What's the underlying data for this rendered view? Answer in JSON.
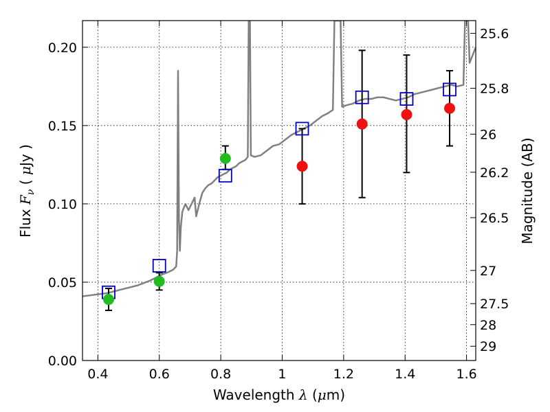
{
  "chart_data": {
    "type": "scatter",
    "xlabel": "Wavelength  λ (μm)",
    "ylabel": "Flux  F_ν ( μJy )",
    "ylabel_right": "Magnitude (AB)",
    "xlim": [
      0.35,
      1.63
    ],
    "ylim": [
      0.0,
      0.217
    ],
    "x_ticks": [
      0.4,
      0.6,
      0.8,
      1.0,
      1.2,
      1.4,
      1.6
    ],
    "x_tick_labels": [
      "0.4",
      "0.6",
      "0.8",
      "1",
      "1.2",
      "1.4",
      "1.6"
    ],
    "y_ticks": [
      0.0,
      0.05,
      0.1,
      0.15,
      0.2
    ],
    "y_tick_labels": [
      "0.00",
      "0.05",
      "0.10",
      "0.15",
      "0.20"
    ],
    "right_ticks": [
      {
        "label": "25.6",
        "flux": 0.2089
      },
      {
        "label": "25.8",
        "flux": 0.1738
      },
      {
        "label": "26",
        "flux": 0.1445
      },
      {
        "label": "26.2",
        "flux": 0.1202
      },
      {
        "label": "26.5",
        "flux": 0.0912
      },
      {
        "label": "27",
        "flux": 0.0575
      },
      {
        "label": "27.5",
        "flux": 0.0363
      },
      {
        "label": "28",
        "flux": 0.0229
      },
      {
        "label": "29",
        "flux": 0.0091
      }
    ],
    "grid": true,
    "colors": {
      "model": "#808080",
      "blue_squares": "#0000bb",
      "green_points": "#22bb22",
      "red_points": "#ee1111",
      "error_bars": "#000000"
    },
    "series": [
      {
        "kind": "model-spectrum",
        "points": [
          [
            0.35,
            0.041
          ],
          [
            0.37,
            0.0415
          ],
          [
            0.39,
            0.042
          ],
          [
            0.41,
            0.0425
          ],
          [
            0.43,
            0.043
          ],
          [
            0.45,
            0.044
          ],
          [
            0.47,
            0.045
          ],
          [
            0.49,
            0.046
          ],
          [
            0.51,
            0.047
          ],
          [
            0.53,
            0.048
          ],
          [
            0.55,
            0.0495
          ],
          [
            0.57,
            0.051
          ],
          [
            0.59,
            0.053
          ],
          [
            0.61,
            0.055
          ],
          [
            0.63,
            0.0565
          ],
          [
            0.645,
            0.058
          ],
          [
            0.655,
            0.06
          ],
          [
            0.658,
            0.07
          ],
          [
            0.661,
            0.185
          ],
          [
            0.664,
            0.09
          ],
          [
            0.667,
            0.07
          ],
          [
            0.67,
            0.085
          ],
          [
            0.675,
            0.095
          ],
          [
            0.685,
            0.1
          ],
          [
            0.695,
            0.096
          ],
          [
            0.705,
            0.1
          ],
          [
            0.715,
            0.104
          ],
          [
            0.72,
            0.092
          ],
          [
            0.73,
            0.1
          ],
          [
            0.74,
            0.107
          ],
          [
            0.75,
            0.11
          ],
          [
            0.76,
            0.112
          ],
          [
            0.77,
            0.113
          ],
          [
            0.78,
            0.115
          ],
          [
            0.79,
            0.117
          ],
          [
            0.8,
            0.118
          ],
          [
            0.81,
            0.119
          ],
          [
            0.82,
            0.12
          ],
          [
            0.83,
            0.122
          ],
          [
            0.84,
            0.123
          ],
          [
            0.85,
            0.124
          ],
          [
            0.86,
            0.126
          ],
          [
            0.87,
            0.127
          ],
          [
            0.88,
            0.128
          ],
          [
            0.888,
            0.13
          ],
          [
            0.891,
            0.217
          ],
          [
            0.895,
            0.217
          ],
          [
            0.898,
            0.131
          ],
          [
            0.91,
            0.13
          ],
          [
            0.93,
            0.131
          ],
          [
            0.95,
            0.134
          ],
          [
            0.97,
            0.137
          ],
          [
            0.99,
            0.138
          ],
          [
            1.01,
            0.141
          ],
          [
            1.03,
            0.144
          ],
          [
            1.05,
            0.146
          ],
          [
            1.07,
            0.148
          ],
          [
            1.09,
            0.15
          ],
          [
            1.11,
            0.153
          ],
          [
            1.13,
            0.156
          ],
          [
            1.15,
            0.158
          ],
          [
            1.165,
            0.16
          ],
          [
            1.17,
            0.217
          ],
          [
            1.19,
            0.217
          ],
          [
            1.195,
            0.162
          ],
          [
            1.21,
            0.163
          ],
          [
            1.23,
            0.164
          ],
          [
            1.25,
            0.166
          ],
          [
            1.27,
            0.167
          ],
          [
            1.29,
            0.167
          ],
          [
            1.31,
            0.168
          ],
          [
            1.33,
            0.168
          ],
          [
            1.35,
            0.167
          ],
          [
            1.37,
            0.166
          ],
          [
            1.39,
            0.167
          ],
          [
            1.41,
            0.168
          ],
          [
            1.43,
            0.17
          ],
          [
            1.45,
            0.171
          ],
          [
            1.47,
            0.172
          ],
          [
            1.49,
            0.173
          ],
          [
            1.51,
            0.174
          ],
          [
            1.53,
            0.175
          ],
          [
            1.55,
            0.176
          ],
          [
            1.57,
            0.175
          ],
          [
            1.59,
            0.176
          ],
          [
            1.595,
            0.217
          ],
          [
            1.605,
            0.217
          ],
          [
            1.61,
            0.19
          ],
          [
            1.62,
            0.195
          ],
          [
            1.63,
            0.2
          ]
        ]
      },
      {
        "kind": "blue-squares",
        "points": [
          [
            0.435,
            0.0435
          ],
          [
            0.6,
            0.0605
          ],
          [
            0.815,
            0.118
          ],
          [
            1.065,
            0.148
          ],
          [
            1.26,
            0.168
          ],
          [
            1.405,
            0.167
          ],
          [
            1.545,
            0.173
          ]
        ]
      },
      {
        "kind": "green-points",
        "points": [
          [
            0.435,
            0.039
          ],
          [
            0.6,
            0.0505
          ],
          [
            0.815,
            0.129
          ]
        ],
        "errors": [
          [
            0.032,
            0.046
          ],
          [
            0.045,
            0.056
          ],
          [
            0.122,
            0.137
          ]
        ]
      },
      {
        "kind": "red-points",
        "points": [
          [
            1.065,
            0.124
          ],
          [
            1.26,
            0.151
          ],
          [
            1.405,
            0.157
          ],
          [
            1.545,
            0.161
          ]
        ],
        "errors": [
          [
            0.1,
            0.148
          ],
          [
            0.104,
            0.198
          ],
          [
            0.12,
            0.195
          ],
          [
            0.137,
            0.185
          ]
        ]
      }
    ]
  }
}
